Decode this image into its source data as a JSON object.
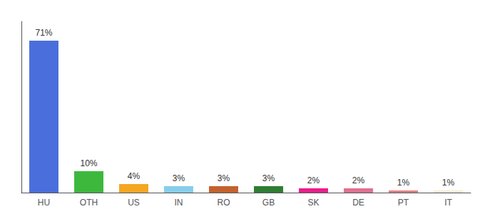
{
  "chart_data": {
    "type": "bar",
    "categories": [
      "HU",
      "OTH",
      "US",
      "IN",
      "RO",
      "GB",
      "SK",
      "DE",
      "PT",
      "IT"
    ],
    "values": [
      71,
      10,
      4,
      3,
      3,
      3,
      2,
      2,
      1,
      1
    ],
    "value_labels": [
      "71%",
      "10%",
      "4%",
      "3%",
      "3%",
      "3%",
      "2%",
      "2%",
      "1%",
      "1%"
    ],
    "colors": [
      "#4a6fdc",
      "#3db83d",
      "#f5a623",
      "#87ceeb",
      "#c4622d",
      "#2e7d32",
      "#e91e8c",
      "#e07090",
      "#e08080",
      "#f0ead8"
    ],
    "ylim": [
      0,
      80
    ],
    "data_labels": true,
    "tick_labels": "x",
    "grid": false
  }
}
